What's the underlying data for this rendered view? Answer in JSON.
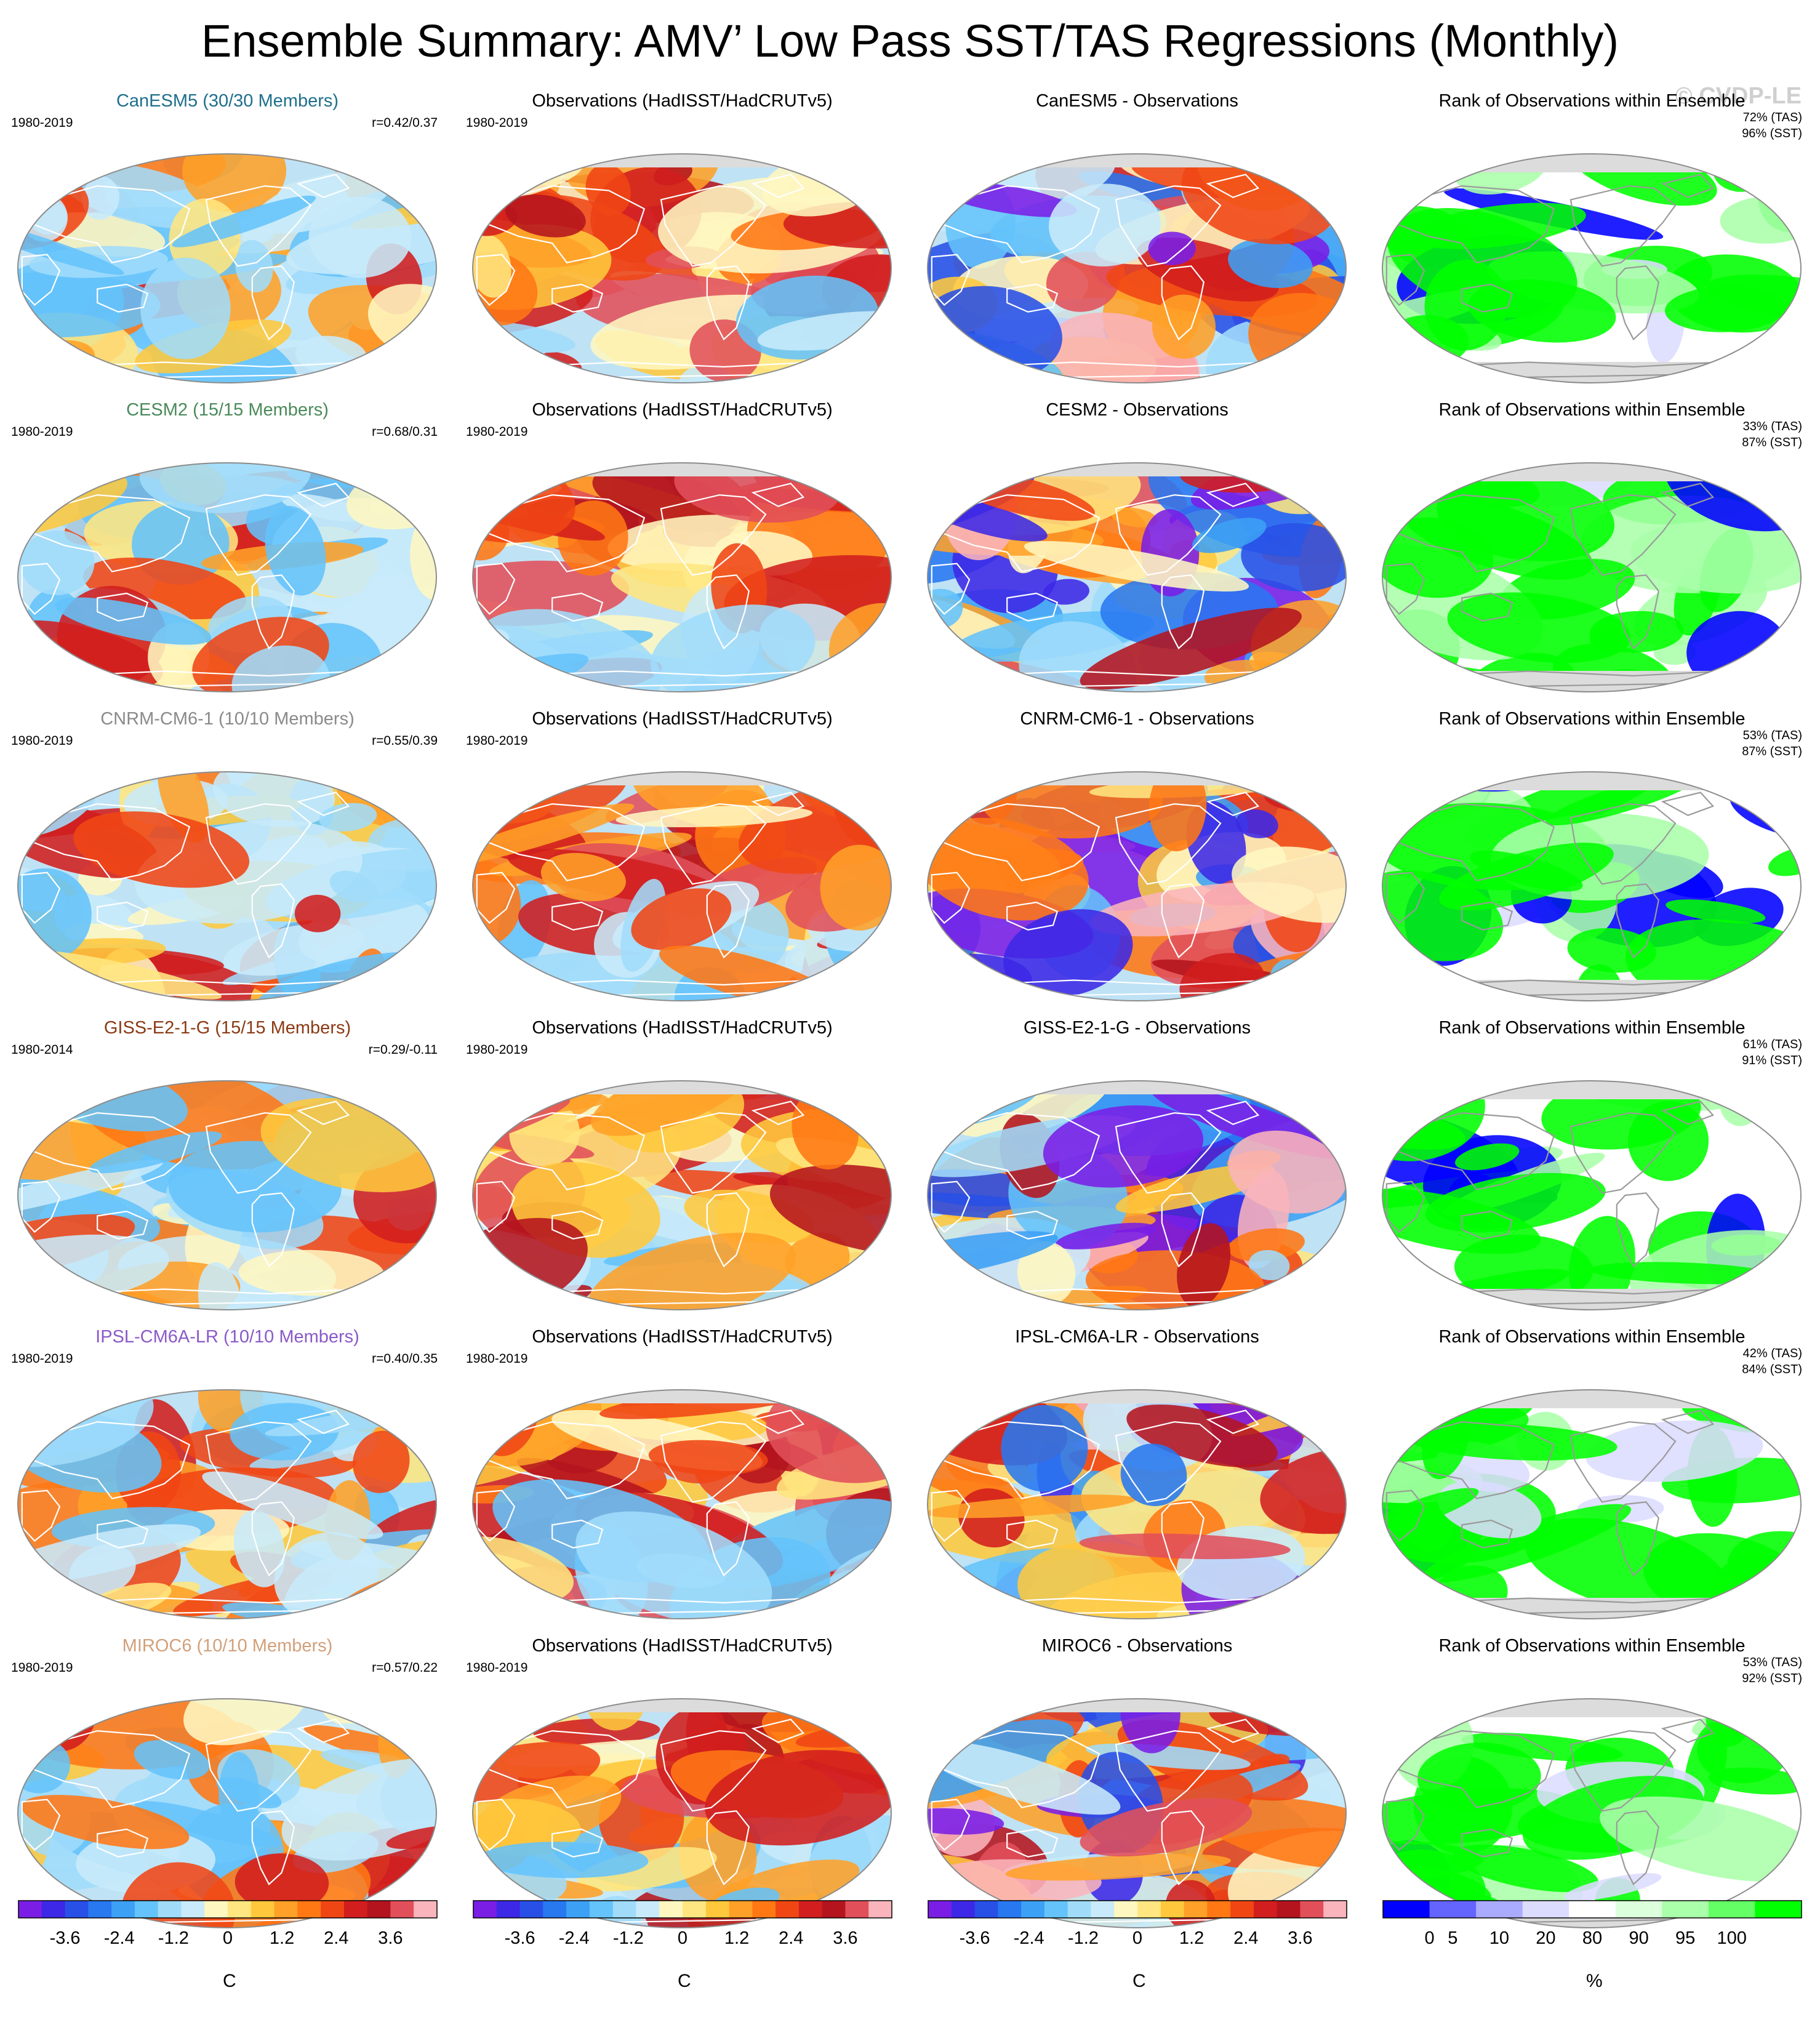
{
  "title": "Ensemble Summary: AMV’ Low Pass SST/TAS Regressions (Monthly)",
  "watermark": "© CVDP-LE",
  "colors": {
    "ocean_bg": "#bfe2f5",
    "land_gray": "#dcdcdc",
    "coast": "#ffffff",
    "palette_diff": [
      "#7a1ee6",
      "#3c28e6",
      "#2850e6",
      "#2878f0",
      "#3ca0f5",
      "#64c3fa",
      "#a0dcfa",
      "#c8eafa",
      "#fff7c0",
      "#ffe680",
      "#ffc83c",
      "#ffa028",
      "#ff7814",
      "#f04614",
      "#d21e1e",
      "#b4141e",
      "#e1505a",
      "#fab4bb"
    ],
    "palette_rank": [
      "#0000ff",
      "#6464ff",
      "#aaaaff",
      "#dcdcff",
      "#ffffff",
      "#dcffdc",
      "#aaffaa",
      "#64ff64",
      "#00ff00"
    ]
  },
  "rows": [
    {
      "model": {
        "title": "CanESM5 (30/30 Members)",
        "color": "#1e6f8c",
        "years": "1980-2019",
        "corr": "r=0.42/0.37"
      },
      "obs": {
        "title": "Observations (HadISST/HadCRUTv5)",
        "years": "1980-2019"
      },
      "diff": {
        "title": "CanESM5 - Observations"
      },
      "rank": {
        "title": "Rank of Observations within Ensemble",
        "tas": "72% (TAS)",
        "sst": "96% (SST)"
      }
    },
    {
      "model": {
        "title": "CESM2 (15/15 Members)",
        "color": "#4a8a5a",
        "years": "1980-2019",
        "corr": "r=0.68/0.31"
      },
      "obs": {
        "title": "Observations (HadISST/HadCRUTv5)",
        "years": "1980-2019"
      },
      "diff": {
        "title": "CESM2 - Observations"
      },
      "rank": {
        "title": "Rank of Observations within Ensemble",
        "tas": "33% (TAS)",
        "sst": "87% (SST)"
      }
    },
    {
      "model": {
        "title": "CNRM-CM6-1 (10/10 Members)",
        "color": "#8a8a8a",
        "years": "1980-2019",
        "corr": "r=0.55/0.39"
      },
      "obs": {
        "title": "Observations (HadISST/HadCRUTv5)",
        "years": "1980-2019"
      },
      "diff": {
        "title": "CNRM-CM6-1 - Observations"
      },
      "rank": {
        "title": "Rank of Observations within Ensemble",
        "tas": "53% (TAS)",
        "sst": "87% (SST)"
      }
    },
    {
      "model": {
        "title": "GISS-E2-1-G (15/15 Members)",
        "color": "#8b3a14",
        "years": "1980-2014",
        "corr": "r=0.29/-0.11"
      },
      "obs": {
        "title": "Observations (HadISST/HadCRUTv5)",
        "years": "1980-2019"
      },
      "diff": {
        "title": "GISS-E2-1-G - Observations"
      },
      "rank": {
        "title": "Rank of Observations within Ensemble",
        "tas": "61% (TAS)",
        "sst": "91% (SST)"
      }
    },
    {
      "model": {
        "title": "IPSL-CM6A-LR (10/10 Members)",
        "color": "#8a5ac8",
        "years": "1980-2019",
        "corr": "r=0.40/0.35"
      },
      "obs": {
        "title": "Observations (HadISST/HadCRUTv5)",
        "years": "1980-2019"
      },
      "diff": {
        "title": "IPSL-CM6A-LR - Observations"
      },
      "rank": {
        "title": "Rank of Observations within Ensemble",
        "tas": "42% (TAS)",
        "sst": "84% (SST)"
      }
    },
    {
      "model": {
        "title": "MIROC6 (10/10 Members)",
        "color": "#d2a07a",
        "years": "1980-2019",
        "corr": "r=0.57/0.22"
      },
      "obs": {
        "title": "Observations (HadISST/HadCRUTv5)",
        "years": "1980-2019"
      },
      "diff": {
        "title": "MIROC6 - Observations"
      },
      "rank": {
        "title": "Rank of Observations within Ensemble",
        "tas": "53% (TAS)",
        "sst": "92% (SST)"
      }
    }
  ],
  "colorbars": [
    {
      "unit": "C",
      "ticks": [
        "-3.6",
        "-2.4",
        "-1.2",
        "0",
        "1.2",
        "2.4",
        "3.6"
      ],
      "palette": "diff"
    },
    {
      "unit": "C",
      "ticks": [
        "-3.6",
        "-2.4",
        "-1.2",
        "0",
        "1.2",
        "2.4",
        "3.6"
      ],
      "palette": "diff"
    },
    {
      "unit": "C",
      "ticks": [
        "-3.6",
        "-2.4",
        "-1.2",
        "0",
        "1.2",
        "2.4",
        "3.6"
      ],
      "palette": "diff"
    },
    {
      "unit": "%",
      "ticks": [
        "0",
        "5",
        "10",
        "20",
        "80",
        "90",
        "95",
        "100"
      ],
      "palette": "rank"
    }
  ]
}
